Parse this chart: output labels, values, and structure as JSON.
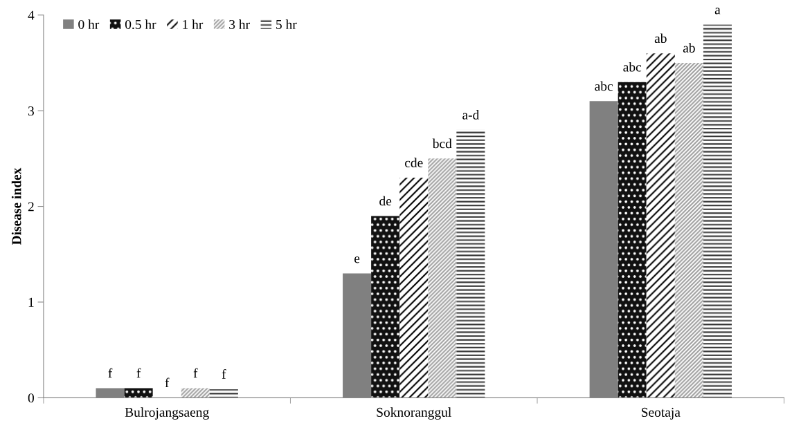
{
  "chart_data": {
    "type": "bar",
    "ylabel": "Disease index",
    "categories": [
      "Bulrojangsaeng",
      "Soknoranggul",
      "Seotaja"
    ],
    "series": [
      {
        "name": "0 hr",
        "color": "#808080",
        "values": [
          0.1,
          1.3,
          3.1
        ],
        "value_labels": [
          "f",
          "e",
          "abc"
        ]
      },
      {
        "name": "0.5 hr",
        "color": "#111111",
        "values": [
          0.1,
          1.9,
          3.3
        ],
        "value_labels": [
          "f",
          "de",
          "abc"
        ]
      },
      {
        "name": "1 hr",
        "color": "#000000",
        "values": [
          0,
          2.3,
          3.6
        ],
        "value_labels": [
          "f",
          "cde",
          "ab"
        ]
      },
      {
        "name": "3 hr",
        "color": "#a0a0a0",
        "values": [
          0.1,
          2.5,
          3.5
        ],
        "value_labels": [
          "f",
          "bcd",
          "ab"
        ]
      },
      {
        "name": "5 hr",
        "color": "#333333",
        "values": [
          0.09,
          2.8,
          3.9
        ],
        "value_labels": [
          "f",
          "a-d",
          "a"
        ]
      }
    ],
    "ylim": [
      0,
      4
    ],
    "yticks": [
      0,
      1,
      2,
      3,
      4
    ],
    "grid": false,
    "legend": "top left"
  }
}
